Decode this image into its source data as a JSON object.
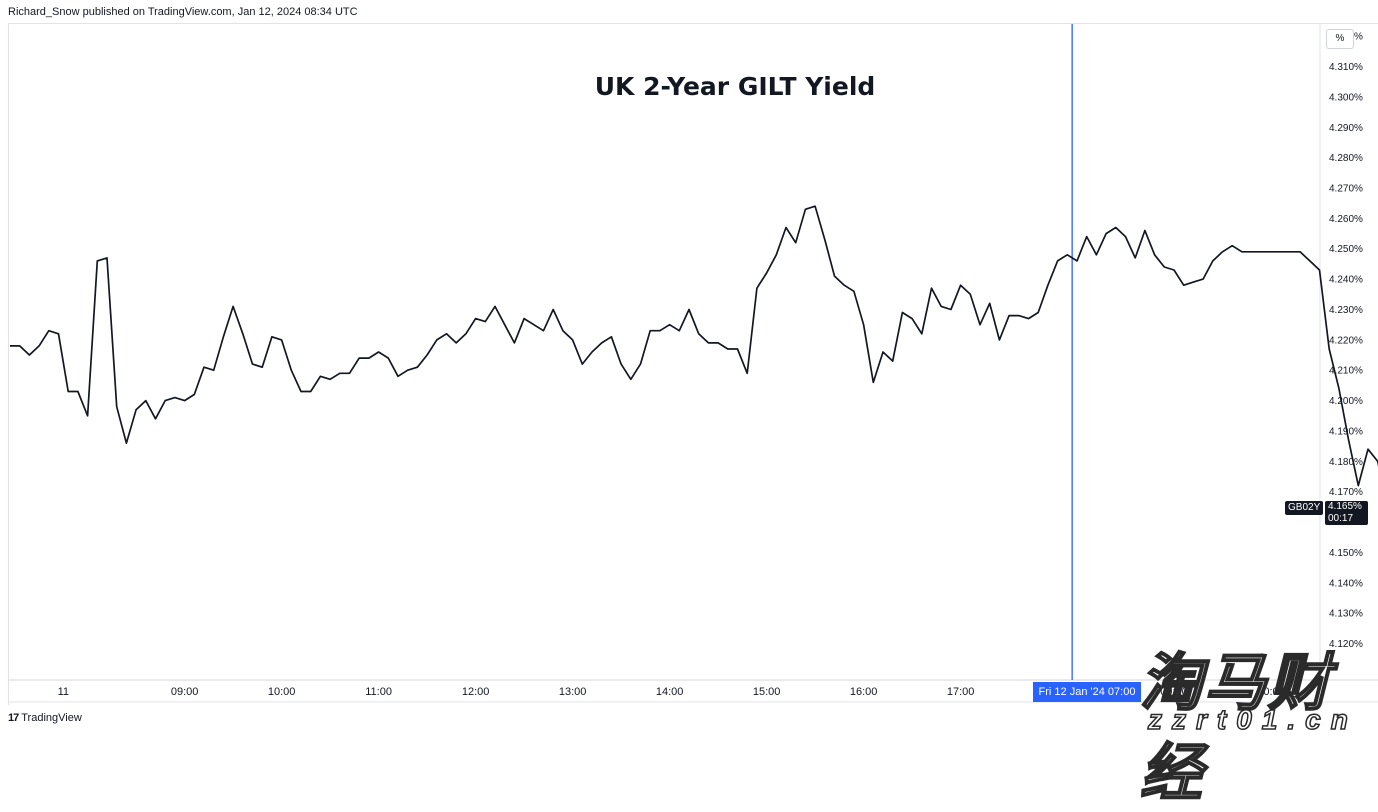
{
  "header": {
    "publisher": "Richard_Snow published on TradingView.com, Jan 12, 2024 08:34 UTC"
  },
  "price_scale": {
    "unit": "%"
  },
  "symbol": {
    "ticker": "GB02Y",
    "last_price": "4.165%",
    "countdown": "00:17"
  },
  "crosshair": {
    "time_label": "Fri 12 Jan '24   07:00"
  },
  "footer": {
    "brand": "TradingView",
    "brand_mark": "17"
  },
  "watermark": {
    "text": "淘马财经",
    "url": "zzrt01.cn"
  },
  "colors": {
    "line": "#131722",
    "crosshair": "#2962ff",
    "grid": "#e0e3eb"
  },
  "chart_data": {
    "type": "line",
    "title": "UK 2-Year GILT Yield",
    "xlabel": "",
    "ylabel": "",
    "ylim": [
      4.108,
      4.324
    ],
    "grid": false,
    "x_tick_labels": [
      "11",
      "09:00",
      "10:00",
      "11:00",
      "12:00",
      "13:00",
      "14:00",
      "15:00",
      "16:00",
      "17:00",
      "07:00",
      "09:00",
      "10:00"
    ],
    "x_tick_slots": [
      5.5,
      18,
      28,
      38,
      48,
      58,
      68,
      78,
      88,
      98,
      109.5,
      120,
      130
    ],
    "y_ticks": [
      4.12,
      4.13,
      4.14,
      4.15,
      4.17,
      4.18,
      4.19,
      4.2,
      4.21,
      4.22,
      4.23,
      4.24,
      4.25,
      4.26,
      4.27,
      4.28,
      4.29,
      4.3,
      4.31,
      4.32
    ],
    "y_tick_labels": [
      "4.120%",
      "4.130%",
      "4.140%",
      "4.150%",
      "4.170%",
      "4.180%",
      "4.190%",
      "4.200%",
      "4.210%",
      "4.220%",
      "4.230%",
      "4.240%",
      "4.250%",
      "4.260%",
      "4.270%",
      "4.280%",
      "4.290%",
      "4.300%",
      "4.310%",
      "4.320%"
    ],
    "crosshair_slot": 109.5,
    "series": [
      {
        "values": [
          4.218,
          4.218,
          4.215,
          4.218,
          4.223,
          4.222,
          4.203,
          4.203,
          4.195,
          4.246,
          4.247,
          4.198,
          4.186,
          4.197,
          4.2,
          4.194,
          4.2,
          4.201,
          4.2,
          4.202,
          4.211,
          4.21,
          4.221,
          4.231,
          4.222,
          4.212,
          4.211,
          4.221,
          4.22,
          4.21,
          4.203,
          4.203,
          4.208,
          4.207,
          4.209,
          4.209,
          4.214,
          4.214,
          4.216,
          4.214,
          4.208,
          4.21,
          4.211,
          4.215,
          4.22,
          4.222,
          4.219,
          4.222,
          4.227,
          4.226,
          4.231,
          4.225,
          4.219,
          4.227,
          4.225,
          4.223,
          4.23,
          4.223,
          4.22,
          4.212,
          4.216,
          4.219,
          4.221,
          4.212,
          4.207,
          4.212,
          4.223,
          4.223,
          4.225,
          4.223,
          4.23,
          4.222,
          4.219,
          4.219,
          4.217,
          4.217,
          4.209,
          4.237,
          4.242,
          4.248,
          4.257,
          4.252,
          4.263,
          4.264,
          4.253,
          4.241,
          4.238,
          4.236,
          4.225,
          4.206,
          4.216,
          4.213,
          4.229,
          4.227,
          4.222,
          4.237,
          4.231,
          4.23,
          4.238,
          4.235,
          4.225,
          4.232,
          4.22,
          4.228,
          4.228,
          4.227,
          4.229,
          4.238,
          4.246,
          4.248,
          4.246,
          4.254,
          4.248,
          4.255,
          4.257,
          4.254,
          4.247,
          4.256,
          4.248,
          4.244,
          4.243,
          4.238,
          4.239,
          4.24,
          4.246,
          4.249,
          4.251,
          4.249,
          4.249,
          4.249,
          4.249,
          4.249,
          4.249,
          4.249,
          4.246,
          4.243,
          4.217,
          4.204,
          4.187,
          4.172,
          4.184,
          4.18,
          4.165
        ]
      }
    ]
  }
}
